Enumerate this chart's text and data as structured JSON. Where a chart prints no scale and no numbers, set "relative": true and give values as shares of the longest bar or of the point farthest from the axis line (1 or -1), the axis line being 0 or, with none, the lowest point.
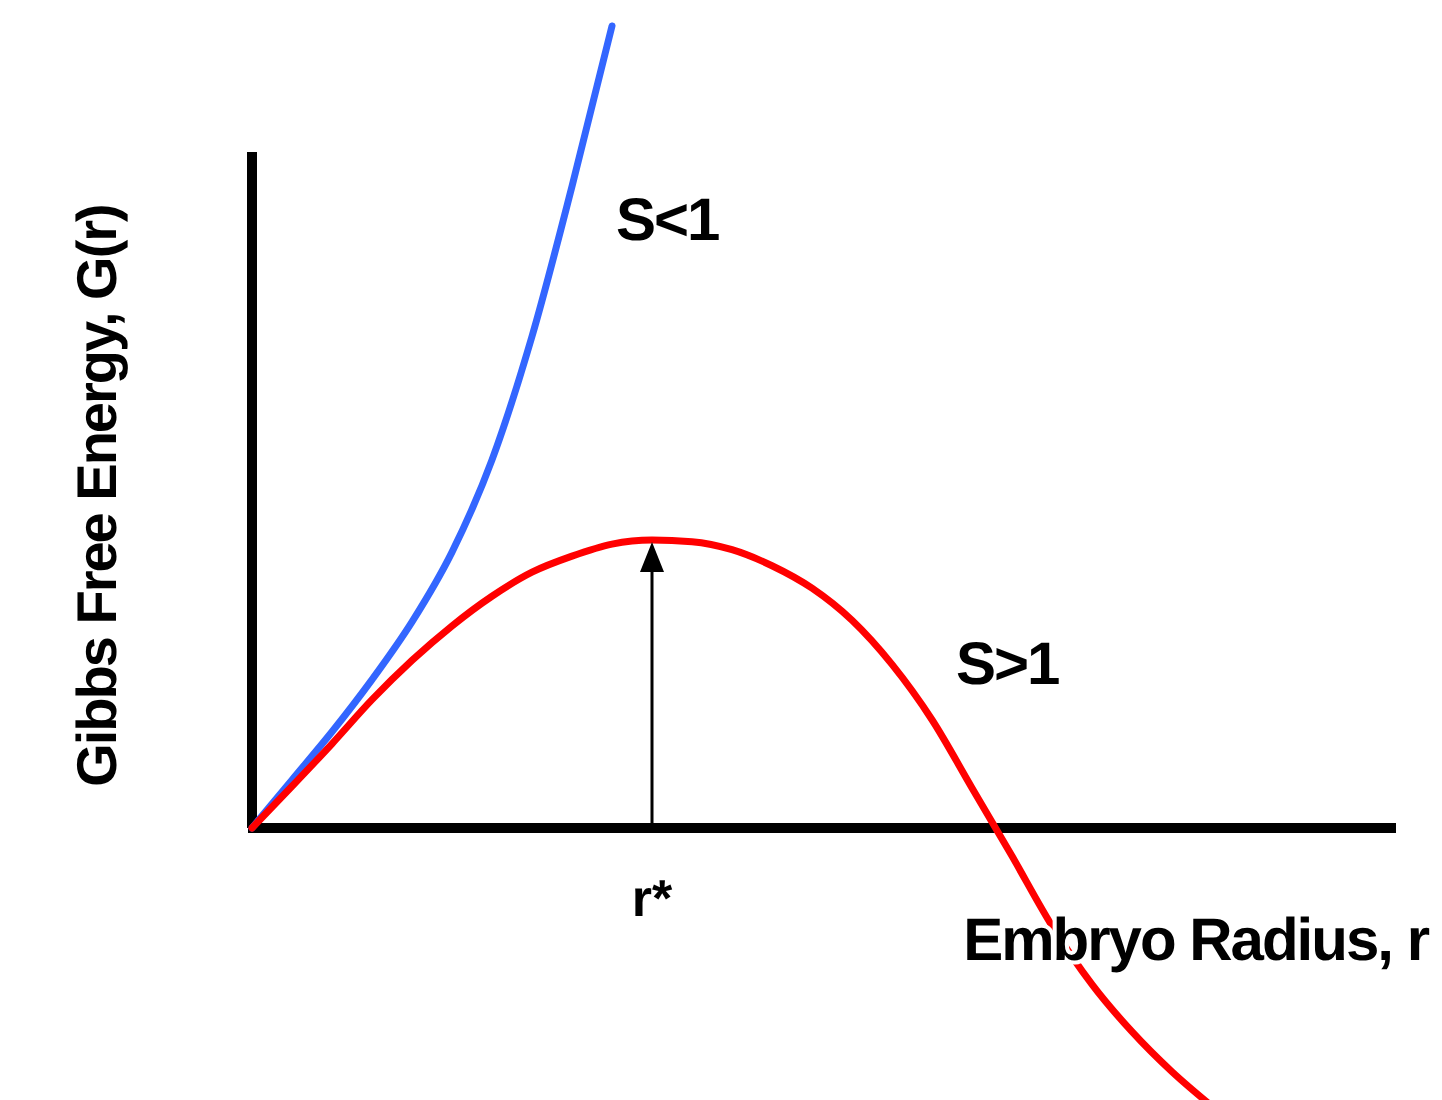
{
  "chart_data": {
    "type": "line",
    "relative": true,
    "xlabel": "Embryo Radius, r",
    "ylabel": "Gibbs Free Energy, G(r)",
    "categories": [
      null,
      null,
      null,
      null,
      null,
      null,
      null,
      null,
      null,
      null,
      null,
      null,
      null,
      null,
      null,
      null,
      null,
      null,
      null,
      null,
      null,
      null,
      null,
      null,
      null
    ],
    "series": [
      {
        "name": "S<1",
        "color": "#3366ff",
        "values": [
          0,
          0.06,
          0.12,
          0.185,
          0.257,
          0.344,
          0.459,
          0.613,
          0.8,
          1,
          null,
          null,
          null,
          null,
          null,
          null,
          null,
          null,
          null,
          null,
          null,
          null,
          null,
          null,
          null
        ]
      },
      {
        "name": "S>1",
        "color": "#ff0000",
        "values": [
          0,
          0.052,
          0.105,
          0.16,
          0.209,
          0.252,
          0.289,
          0.319,
          0.339,
          0.354,
          0.359,
          0.357,
          0.347,
          0.327,
          0.299,
          0.259,
          0.204,
          0.135,
          0.05,
          -0.035,
          -0.122,
          -0.195,
          -0.254,
          -0.304,
          -0.347
        ]
      }
    ],
    "annotations": [
      "r*"
    ],
    "legend": false,
    "marker": "none",
    "line_style": "solid"
  }
}
